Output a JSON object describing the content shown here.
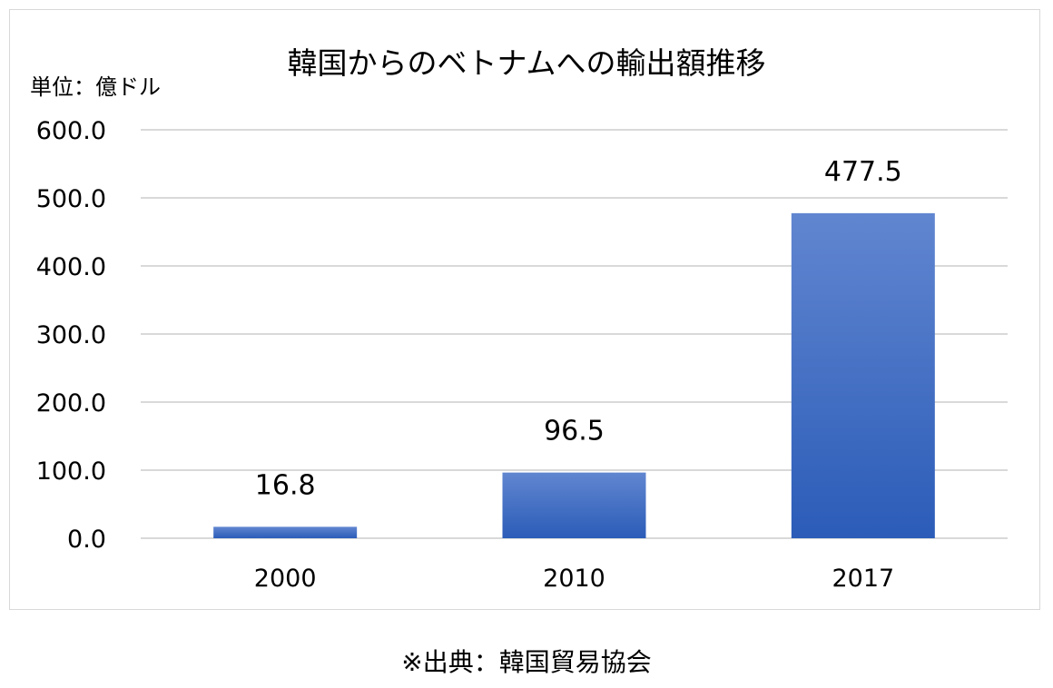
{
  "chart_data": {
    "type": "bar",
    "title": "韓国からのベトナムへの輸出額推移",
    "unit_label": "単位：億ドル",
    "categories": [
      "2000",
      "2010",
      "2017"
    ],
    "values": [
      16.8,
      96.5,
      477.5
    ],
    "data_labels": [
      "16.8",
      "96.5",
      "477.5"
    ],
    "y_ticks": [
      "0.0",
      "100.0",
      "200.0",
      "300.0",
      "400.0",
      "500.0",
      "600.0"
    ],
    "ylim": [
      0,
      600
    ],
    "grid": true,
    "legend": "none",
    "colors": {
      "bar_top": "#6186d0",
      "bar_bottom": "#2b5cb8",
      "grid": "#d9d9d9",
      "frame": "#d9d9d9"
    }
  },
  "source_note": "※出典：韓国貿易協会"
}
